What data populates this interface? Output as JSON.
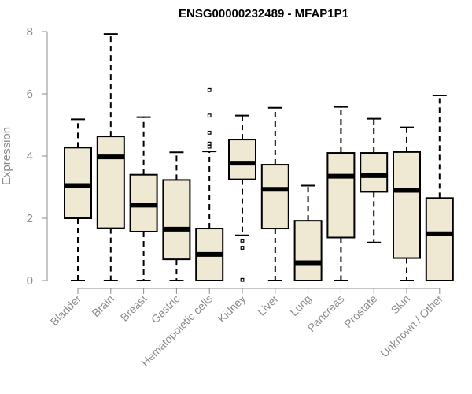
{
  "chart_data": {
    "type": "box",
    "title": "ENSG00000232489 - MFAP1P1",
    "xlabel": "",
    "ylabel": "Expression",
    "ylim": [
      0,
      8
    ],
    "yticks": [
      0,
      2,
      4,
      6,
      8
    ],
    "grid": false,
    "colors": {
      "box_fill": "#efe8d2",
      "stroke": "#000000",
      "axis": "#8c8c8c"
    },
    "categories": [
      "Bladder",
      "Brain",
      "Breast",
      "Gastric",
      "Hematopoietic cells",
      "Kidney",
      "Liver",
      "Lung",
      "Pancreas",
      "Prostate",
      "Skin",
      "Unknown / Other"
    ],
    "boxes": [
      {
        "category": "Bladder",
        "whisker_low": 0.0,
        "q1": 2.0,
        "median": 3.05,
        "q3": 4.27,
        "whisker_high": 5.18,
        "outliers": []
      },
      {
        "category": "Brain",
        "whisker_low": 0.0,
        "q1": 1.68,
        "median": 3.97,
        "q3": 4.63,
        "whisker_high": 7.92,
        "outliers": []
      },
      {
        "category": "Breast",
        "whisker_low": 0.0,
        "q1": 1.57,
        "median": 2.42,
        "q3": 3.4,
        "whisker_high": 5.25,
        "outliers": []
      },
      {
        "category": "Gastric",
        "whisker_low": 0.0,
        "q1": 0.68,
        "median": 1.65,
        "q3": 3.23,
        "whisker_high": 4.12,
        "outliers": []
      },
      {
        "category": "Hematopoietic cells",
        "whisker_low": 0.0,
        "q1": 0.0,
        "median": 0.84,
        "q3": 1.67,
        "whisker_high": 4.15,
        "outliers": [
          4.3,
          4.4,
          4.75,
          5.3,
          6.12
        ]
      },
      {
        "category": "Kidney",
        "whisker_low": 1.45,
        "q1": 3.25,
        "median": 3.77,
        "q3": 4.53,
        "whisker_high": 5.3,
        "outliers": [
          0.02,
          1.05,
          1.28
        ]
      },
      {
        "category": "Liver",
        "whisker_low": 0.0,
        "q1": 1.67,
        "median": 2.93,
        "q3": 3.72,
        "whisker_high": 5.55,
        "outliers": []
      },
      {
        "category": "Lung",
        "whisker_low": 0.0,
        "q1": 0.0,
        "median": 0.57,
        "q3": 1.92,
        "whisker_high": 3.05,
        "outliers": []
      },
      {
        "category": "Pancreas",
        "whisker_low": 0.0,
        "q1": 1.38,
        "median": 3.35,
        "q3": 4.1,
        "whisker_high": 5.58,
        "outliers": []
      },
      {
        "category": "Prostate",
        "whisker_low": 1.22,
        "q1": 2.85,
        "median": 3.37,
        "q3": 4.1,
        "whisker_high": 5.2,
        "outliers": []
      },
      {
        "category": "Skin",
        "whisker_low": 0.0,
        "q1": 0.72,
        "median": 2.9,
        "q3": 4.13,
        "whisker_high": 4.92,
        "outliers": []
      },
      {
        "category": "Unknown / Other",
        "whisker_low": 0.0,
        "q1": 0.0,
        "median": 1.5,
        "q3": 2.65,
        "whisker_high": 5.95,
        "outliers": []
      }
    ]
  }
}
